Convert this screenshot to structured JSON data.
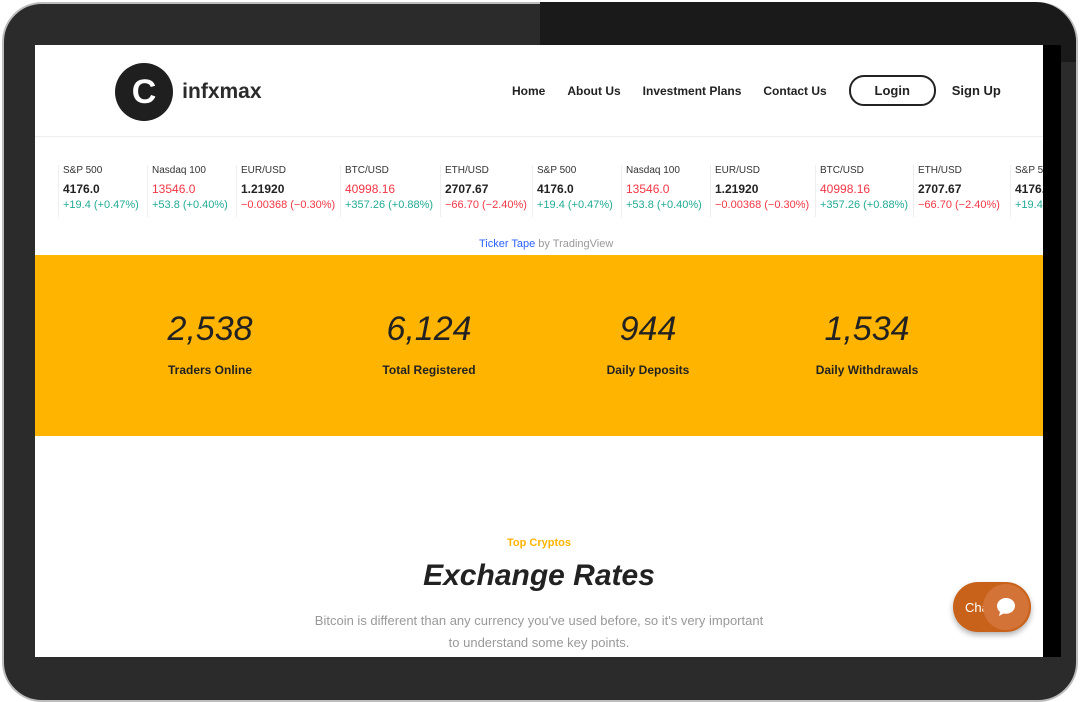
{
  "header": {
    "logo": "Coinfxmax",
    "logo_mark": "C",
    "nav": [
      "Home",
      "About Us",
      "Investment Plans",
      "Contact Us"
    ],
    "login": "Login",
    "signup": "Sign Up"
  },
  "ticker": [
    {
      "name": "S&P 500",
      "price": "4176.0",
      "change": "+19.4 (+0.47%)",
      "dir": "up",
      "price_red": false
    },
    {
      "name": "Nasdaq 100",
      "price": "13546.0",
      "change": "+53.8 (+0.40%)",
      "dir": "up",
      "price_red": true
    },
    {
      "name": "EUR/USD",
      "price": "1.21920",
      "change": "−0.00368 (−0.30%)",
      "dir": "dn",
      "price_red": false
    },
    {
      "name": "BTC/USD",
      "price": "40998.16",
      "change": "+357.26 (+0.88%)",
      "dir": "up",
      "price_red": true
    },
    {
      "name": "ETH/USD",
      "price": "2707.67",
      "change": "−66.70 (−2.40%)",
      "dir": "dn",
      "price_red": false
    }
  ],
  "ticker_credit": {
    "link": "Ticker Tape",
    "by": " by TradingView"
  },
  "stats": [
    {
      "value": "2,538",
      "label": "Traders Online"
    },
    {
      "value": "6,124",
      "label": "Total Registered"
    },
    {
      "value": "944",
      "label": "Daily Deposits"
    },
    {
      "value": "1,534",
      "label": "Daily Withdrawals"
    }
  ],
  "section": {
    "eyebrow": "Top Cryptos",
    "title": "Exchange Rates",
    "desc1": "Bitcoin is different than any currency you've used before, so it's very important",
    "desc2": "to understand some key points."
  },
  "chat": {
    "label": "Chat"
  },
  "colors": {
    "accent": "#ffb400",
    "up": "#22ab94",
    "down": "#f23645",
    "chat": "#c8621a"
  }
}
